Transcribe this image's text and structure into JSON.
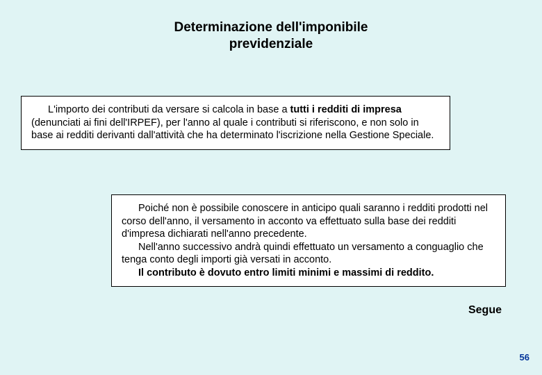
{
  "colors": {
    "background": "#e0f4f4",
    "box_background": "#ffffff",
    "box_border": "#000000",
    "text": "#000000",
    "page_number": "#003399"
  },
  "typography": {
    "title_fontsize": 19,
    "title_weight": "bold",
    "body_fontsize": 14.5,
    "segue_fontsize": 16,
    "pagenum_fontsize": 13
  },
  "title": {
    "line1": "Determinazione dell'imponibile",
    "line2": "previdenziale"
  },
  "box1": {
    "p1_pre": "L'importo dei contributi da versare si calcola in base a ",
    "p1_bold": "tutti i redditi di impresa",
    "p1_post": " (denunciati ai fini dell'IRPEF), per l'anno al quale i contributi si riferiscono, e non solo in base ai redditi derivanti dall'attività che ha determinato l'iscrizione nella Gestione Speciale."
  },
  "box2": {
    "p1": "Poiché non è possibile conoscere in anticipo quali saranno i redditi prodotti nel corso dell'anno, il versamento in acconto va effettuato sulla base dei redditi d'impresa dichiarati nell'anno precedente.",
    "p2": "Nell'anno successivo andrà quindi effettuato un versamento a conguaglio che tenga conto degli importi già versati in acconto.",
    "p3_bold": "Il contributo è dovuto entro limiti minimi e massimi di reddito."
  },
  "segue": "Segue",
  "page_number": "56"
}
